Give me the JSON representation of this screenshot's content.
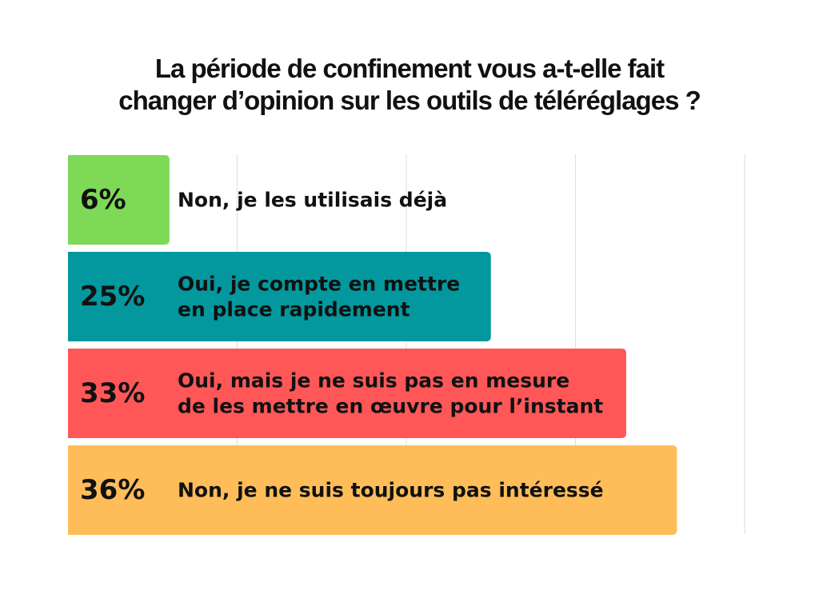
{
  "chart_data": {
    "type": "bar",
    "orientation": "horizontal",
    "title_lines": [
      "La période de confinement vous a-t-elle fait",
      "changer d’opinion sur les outils de téléréglages ?"
    ],
    "grid": true,
    "xlim": [
      0,
      40
    ],
    "categories": [
      {
        "label_lines": [
          "Non, je les utilisais déjà"
        ],
        "value": 6,
        "value_label": "6%",
        "color": "#7ED957"
      },
      {
        "label_lines": [
          "Oui, je compte en mettre",
          "en place rapidement"
        ],
        "value": 25,
        "value_label": "25%",
        "color": "#03989E"
      },
      {
        "label_lines": [
          "Oui, mais je ne suis pas en mesure",
          "de les mettre en œuvre pour l’instant"
        ],
        "value": 33,
        "value_label": "33%",
        "color": "#FF5757"
      },
      {
        "label_lines": [
          "Non, je ne suis toujours pas intéressé"
        ],
        "value": 36,
        "value_label": "36%",
        "color": "#FFBD59"
      }
    ]
  }
}
